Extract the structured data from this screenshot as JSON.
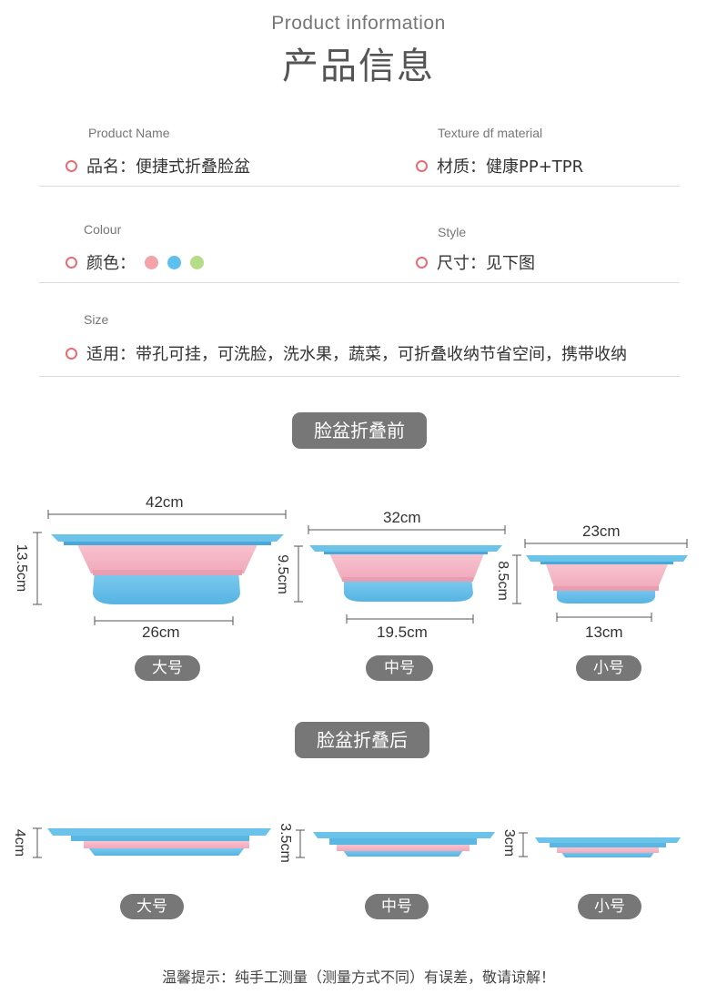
{
  "header": {
    "title_en": "Product information",
    "title_cn": "产品信息"
  },
  "info": {
    "name_en": "Product  Name",
    "name": "品名：便捷式折叠脸盆",
    "material_en": "Texture df material",
    "material": "材质：健康PP+TPR",
    "colour_en": "Colour",
    "colour": "颜色：",
    "colours": [
      "#f4a3a8",
      "#5dc0ee",
      "#b5dc86"
    ],
    "style_en": "Style",
    "style": "尺寸：见下图",
    "size_en": "Size",
    "usage": "适用：带孔可挂，可洗脸，洗水果，蔬菜，可折叠收纳节省空间，携带收纳"
  },
  "before": {
    "label": "脸盆折叠前",
    "large": {
      "top": "42cm",
      "bottom": "26cm",
      "height": "13.5cm",
      "tag": "大号"
    },
    "medium": {
      "top": "32cm",
      "bottom": "19.5cm",
      "height": "9.5cm",
      "tag": "中号"
    },
    "small": {
      "top": "23cm",
      "bottom": "13cm",
      "height": "8.5cm",
      "tag": "小号"
    }
  },
  "after": {
    "label": "脸盆折叠后",
    "large": {
      "height": "4cm",
      "tag": "大号"
    },
    "medium": {
      "height": "3.5cm",
      "tag": "中号"
    },
    "small": {
      "height": "3cm",
      "tag": "小号"
    }
  },
  "footer": "温馨提示：纯手工测量（测量方式不同）有误差，敬请谅解！",
  "colors": {
    "basin_blue": "#6cc3ea",
    "basin_pink": "#f4b2c4",
    "accent": "#e86c74"
  }
}
